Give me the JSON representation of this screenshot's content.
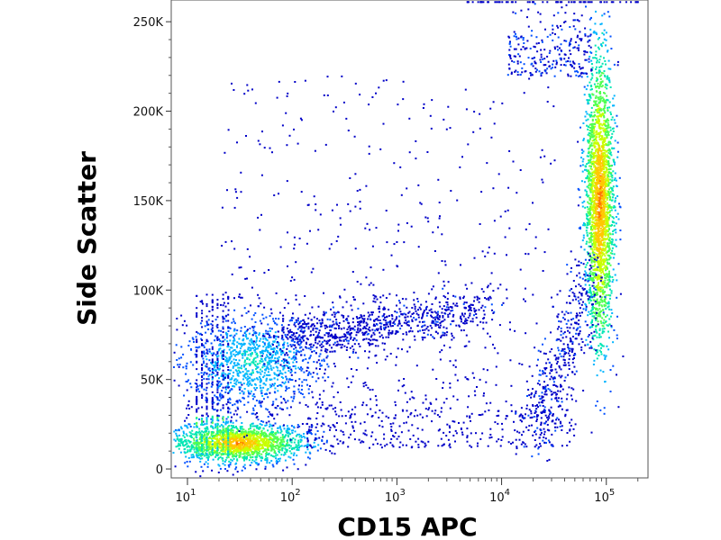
{
  "chart_data": {
    "type": "heatmap",
    "subtype": "flow-cytometry-density-dot-plot",
    "title": "",
    "xlabel": "CD15 APC",
    "ylabel": "Side Scatter",
    "x_scale": "log",
    "xlim": [
      7,
      250000
    ],
    "ylim": [
      -5000,
      262144
    ],
    "x_ticks": [
      {
        "value": 10,
        "base": "10",
        "exp": "1"
      },
      {
        "value": 100,
        "base": "10",
        "exp": "2"
      },
      {
        "value": 1000,
        "base": "10",
        "exp": "3"
      },
      {
        "value": 10000,
        "base": "10",
        "exp": "4"
      },
      {
        "value": 100000,
        "base": "10",
        "exp": "5"
      }
    ],
    "y_ticks": [
      {
        "value": 0,
        "label": "0"
      },
      {
        "value": 50000,
        "label": "50K"
      },
      {
        "value": 100000,
        "label": "100K"
      },
      {
        "value": 150000,
        "label": "150K"
      },
      {
        "value": 200000,
        "label": "200K"
      },
      {
        "value": 250000,
        "label": "250K"
      }
    ],
    "density_colormap": [
      "#0000c8",
      "#0050ff",
      "#00b4ff",
      "#00e6b4",
      "#50ff50",
      "#c8ff00",
      "#ffc800",
      "#ff7800"
    ],
    "populations": [
      {
        "name": "low-SSC CD15-negative",
        "x_center": 30,
        "y_center": 15000,
        "density": "highest"
      },
      {
        "name": "mid-SSC CD15-low",
        "x_center": 40,
        "y_center": 60000,
        "density": "medium"
      },
      {
        "name": "SSC-rising CD15-dim band",
        "x_range": [
          100,
          5000
        ],
        "y_range": [
          70000,
          95000
        ],
        "density": "low"
      },
      {
        "name": "granulocytes CD15-high",
        "x_center": 85000,
        "y_center": 150000,
        "density": "high"
      }
    ],
    "grid": false,
    "legend": "none"
  }
}
